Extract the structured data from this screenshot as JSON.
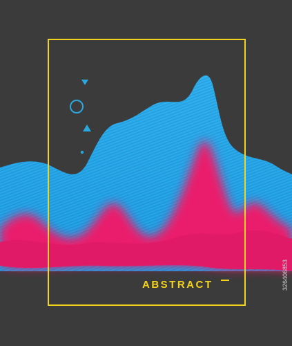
{
  "poster": {
    "title": "ABSTRACT"
  },
  "stock_id": "326406853"
}
